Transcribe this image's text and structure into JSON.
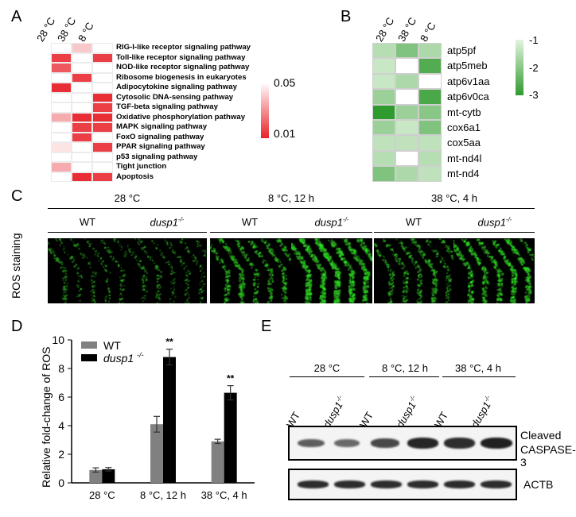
{
  "panels": {
    "A": "A",
    "B": "B",
    "C": "C",
    "D": "D",
    "E": "E"
  },
  "panelA": {
    "columns": [
      "28 °C",
      "38 °C",
      "8 °C"
    ],
    "pathways": [
      "RIG-I-like receptor signaling pathway",
      "Toll-like receptor signaling pathway",
      "NOD-like receptor signaling pathway",
      "Ribosome biogenesis in eukaryotes",
      "Adipocytokine signaling pathway",
      "Cytosolic DNA-sensing pathway",
      "TGF-beta signaling pathway",
      "Oxidative phosphorylation pathway",
      "MAPK signaling pathway",
      "FoxO signaling pathway",
      "PPAR signaling pathway",
      "p53 signaling pathway",
      "Tight junction",
      "Apoptosis"
    ],
    "pvalues": [
      [
        null,
        0.04,
        null
      ],
      [
        0.015,
        null,
        0.015
      ],
      [
        0.02,
        null,
        null
      ],
      [
        null,
        0.015,
        null
      ],
      [
        0.012,
        null,
        null
      ],
      [
        null,
        null,
        0.012
      ],
      [
        null,
        null,
        0.015
      ],
      [
        0.035,
        0.012,
        0.012
      ],
      [
        null,
        0.015,
        0.015
      ],
      [
        null,
        0.015,
        null
      ],
      [
        0.045,
        null,
        0.015
      ],
      [
        null,
        null,
        null
      ],
      [
        0.035,
        null,
        null
      ],
      [
        null,
        0.012,
        0.015
      ]
    ],
    "scale": {
      "max": "0.05",
      "min": "0.01",
      "color_max": "#ffffff",
      "color_min": "#e8222a"
    }
  },
  "panelB": {
    "columns": [
      "28 °C",
      "38 °C",
      "8 °C"
    ],
    "genes": [
      "atp5pf",
      "atp5meb",
      "atp6v1aa",
      "atp6v0ca",
      "mt-cytb",
      "cox6a1",
      "cox5aa",
      "mt-nd4l",
      "mt-nd4"
    ],
    "values": [
      [
        -1.5,
        -2.1,
        -1.6
      ],
      [
        -1.3,
        null,
        -2.6
      ],
      [
        -1.3,
        -1.6,
        null
      ],
      [
        -1.8,
        null,
        -2.7
      ],
      [
        -3.0,
        -1.8,
        -2.0
      ],
      [
        -1.8,
        -1.3,
        -2.1
      ],
      [
        -1.4,
        -1.4,
        -1.4
      ],
      [
        -1.5,
        null,
        -1.5
      ],
      [
        -2.1,
        -1.6,
        -1.4
      ]
    ],
    "scale": {
      "labels": [
        "-1",
        "-2",
        "-3"
      ],
      "color_high": "#e3f4df",
      "color_low": "#2f9a2e"
    }
  },
  "panelC": {
    "conditions": [
      "28 °C",
      "8 °C, 12 h",
      "38 °C, 4 h"
    ],
    "genotypes": [
      "WT",
      "dusp1",
      "WT",
      "dusp1",
      "WT",
      "dusp1"
    ],
    "superscript": "-/-",
    "row_label": "ROS staining",
    "density": [
      0.25,
      0.22,
      0.55,
      0.95,
      0.45,
      0.7
    ]
  },
  "panelD": {
    "chart_data": {
      "type": "bar",
      "categories": [
        "28 °C",
        "8 °C, 12 h",
        "38 °C, 4 h"
      ],
      "series": [
        {
          "name": "WT",
          "values": [
            0.9,
            4.1,
            2.9
          ],
          "errors": [
            0.15,
            0.55,
            0.15
          ],
          "color": "#808080"
        },
        {
          "name": "dusp1-/-",
          "values": [
            0.95,
            8.8,
            6.3
          ],
          "errors": [
            0.12,
            0.55,
            0.5
          ],
          "color": "#000000"
        }
      ],
      "ylabel": "Relative fold-change of ROS",
      "ylim": [
        0,
        10
      ],
      "yticks": [
        "0",
        "2",
        "4",
        "6",
        "8",
        "10"
      ],
      "annotations": [
        "",
        "**",
        "**"
      ],
      "legend": [
        "WT",
        "dusp1"
      ],
      "legend_sup": "-/-"
    }
  },
  "panelE": {
    "conditions": [
      "28 °C",
      "8 °C, 12 h",
      "38 °C, 4 h"
    ],
    "lanes": [
      "WT",
      "dusp1",
      "WT",
      "dusp1",
      "WT",
      "dusp1"
    ],
    "superscript": "-/-",
    "bands": {
      "caspase": [
        0.55,
        0.45,
        0.7,
        0.95,
        0.9,
        1.0
      ],
      "actb": [
        0.9,
        0.9,
        0.9,
        0.9,
        0.9,
        0.9
      ]
    },
    "labels": {
      "caspase_1": "Cleaved",
      "caspase_2": "CASPASE-3",
      "actb": "ACTB"
    }
  }
}
